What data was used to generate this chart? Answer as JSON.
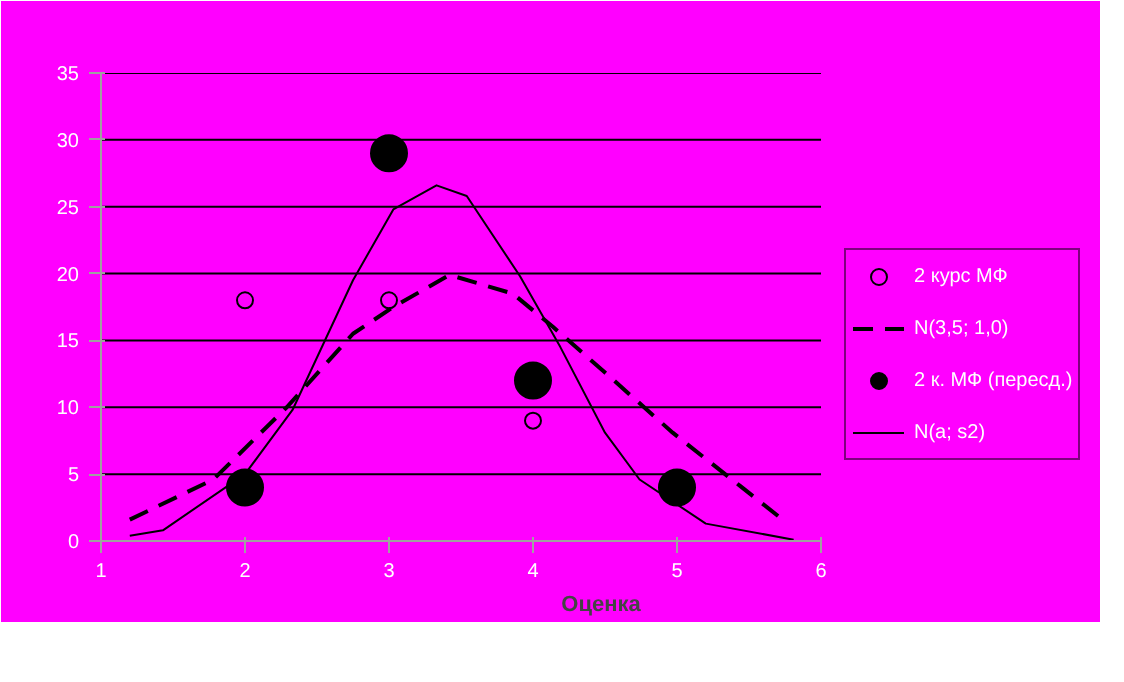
{
  "chart_data": {
    "type": "scatter",
    "xlabel": "Оценка",
    "xlim": [
      1,
      6
    ],
    "xticks": [
      1,
      2,
      3,
      4,
      5,
      6
    ],
    "ylim": [
      0,
      35
    ],
    "yticks": [
      0,
      5,
      10,
      15,
      20,
      25,
      30,
      35
    ],
    "grid": "y",
    "legend": "right",
    "series": [
      {
        "name": "2 курс МФ",
        "marker": "circle",
        "color": "#000000",
        "x": [
          2,
          3,
          4
        ],
        "values": [
          18,
          18,
          9
        ]
      },
      {
        "name": "N(3,5; 1,0)",
        "type": "line",
        "line_style": "dashed",
        "color": "#000000",
        "x": [
          1.2,
          1.78,
          2.29,
          2.75,
          3.03,
          3.42,
          3.86,
          4.14,
          4.5,
          4.97,
          5.44,
          5.71
        ],
        "values": [
          1.6,
          4.6,
          10.0,
          15.5,
          17.5,
          19.9,
          18.5,
          16.0,
          12.6,
          8.1,
          4.1,
          1.8
        ]
      },
      {
        "name": "2 к. МФ (пересд.)",
        "type": "bubble",
        "marker": "circle",
        "color": "#000000",
        "x": [
          2,
          3,
          4,
          5
        ],
        "values": [
          4,
          29,
          12,
          4
        ]
      },
      {
        "name": "N(a; s2)",
        "type": "line",
        "line_style": "solid",
        "color": "#000000",
        "x": [
          1.2,
          1.43,
          2,
          2.33,
          2.75,
          3.03,
          3.33,
          3.54,
          3.91,
          4.19,
          4.5,
          4.74,
          5.2,
          5.81
        ],
        "values": [
          0.4,
          0.8,
          5,
          9.8,
          19.5,
          24.8,
          26.6,
          25.8,
          19.8,
          14.5,
          8.1,
          4.6,
          1.3,
          0.1
        ]
      }
    ]
  }
}
